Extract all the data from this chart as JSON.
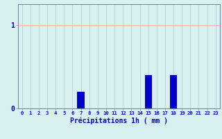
{
  "hours": [
    0,
    1,
    2,
    3,
    4,
    5,
    6,
    7,
    8,
    9,
    10,
    11,
    12,
    13,
    14,
    15,
    16,
    17,
    18,
    19,
    20,
    21,
    22,
    23
  ],
  "values": [
    0,
    0,
    0,
    0,
    0,
    0,
    0,
    0.2,
    0,
    0,
    0,
    0,
    0,
    0,
    0,
    0.4,
    0,
    0,
    0.4,
    0,
    0,
    0,
    0,
    0
  ],
  "bar_color": "#0000cc",
  "background_color": "#d8f0f0",
  "grid_h_color": "#ffb0b0",
  "grid_v_color": "#aacccc",
  "xlabel": "Précipitations 1h ( mm )",
  "xlabel_color": "#0000cc",
  "tick_color": "#0000cc",
  "spine_color": "#7090a0",
  "ylim": [
    0,
    1.25
  ],
  "ytick_vals": [
    0,
    1
  ],
  "ytick_labels": [
    "0",
    "1"
  ],
  "xlim": [
    -0.5,
    23.5
  ]
}
